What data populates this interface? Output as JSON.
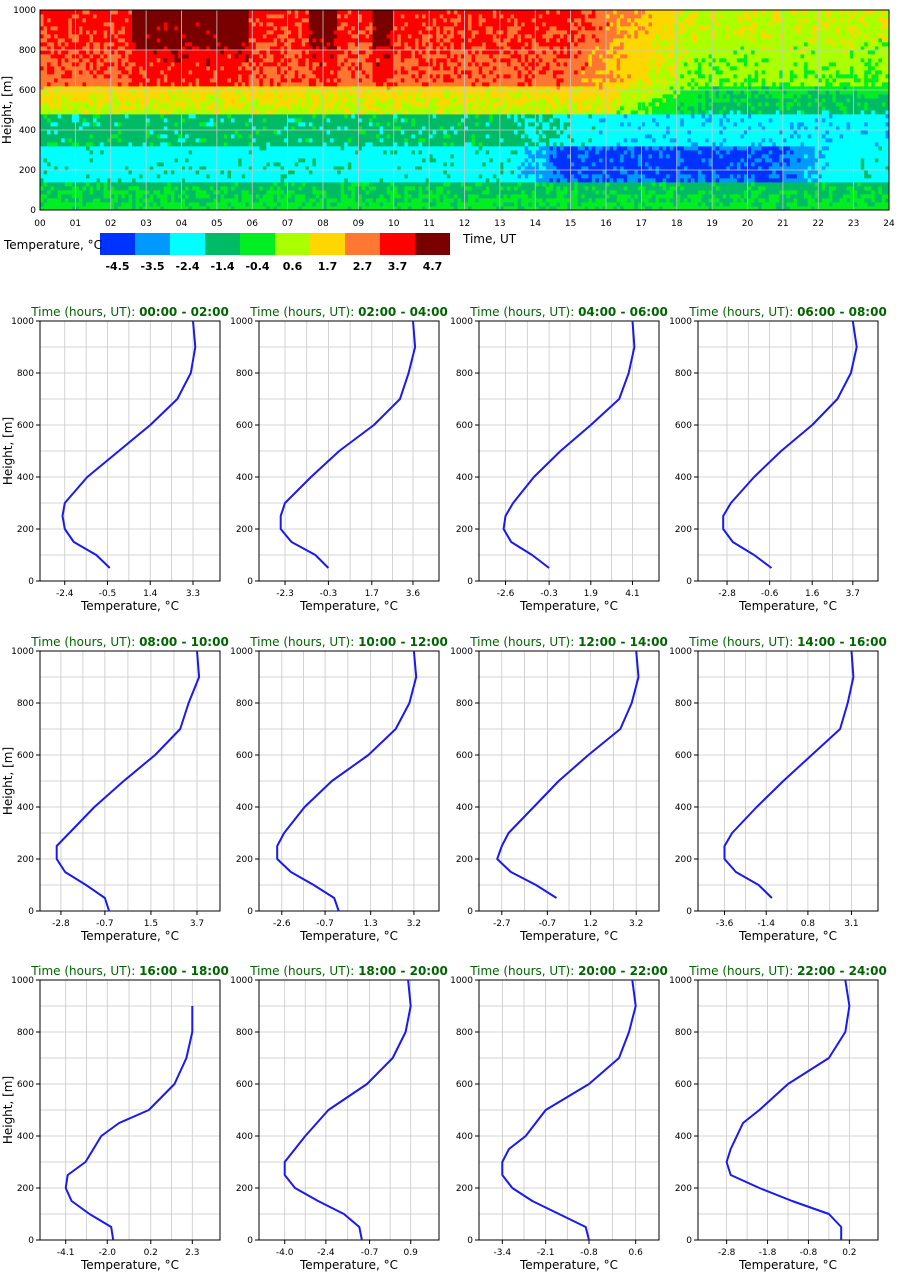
{
  "chart_data": [
    {
      "type": "heatmap",
      "xlabel": "Time, UT",
      "ylabel": "Height, [m]",
      "x_ticks": [
        "00",
        "01",
        "02",
        "03",
        "04",
        "05",
        "06",
        "07",
        "08",
        "09",
        "10",
        "11",
        "12",
        "13",
        "14",
        "15",
        "16",
        "17",
        "18",
        "19",
        "20",
        "21",
        "22",
        "23",
        "24"
      ],
      "y_ticks": [
        0,
        200,
        400,
        600,
        800,
        1000
      ],
      "xlim": [
        0,
        24
      ],
      "ylim": [
        0,
        1000
      ],
      "grid": true,
      "colorbar": {
        "label": "Temperature, °C",
        "levels": [
          "-4.5",
          "-3.5",
          "-2.4",
          "-1.4",
          "-0.4",
          "0.6",
          "1.7",
          "2.7",
          "3.7",
          "4.7"
        ],
        "colors": [
          "#0033ff",
          "#0099ff",
          "#00ffff",
          "#00bb66",
          "#00ee22",
          "#aaff00",
          "#ffd700",
          "#ff7733",
          "#ff0000",
          "#7a0000"
        ]
      }
    },
    {
      "type": "line",
      "title_prefix": "Time (hours, UT): ",
      "title_range": "00:00 - 02:00",
      "xlabel": "Temperature, °C",
      "ylabel": "Height, [m]",
      "x_ticks": [
        -2.4,
        -0.5,
        1.4,
        3.3
      ],
      "xlim": [
        -3.5,
        4.5
      ],
      "ylim": [
        0,
        1000
      ],
      "y_ticks": [
        0,
        200,
        400,
        600,
        800,
        1000
      ],
      "series": [
        {
          "temp": [
            -0.4,
            -1.0,
            -2.0,
            -2.4,
            -2.5,
            -2.4,
            -1.4,
            0.0,
            1.4,
            2.6,
            3.2,
            3.4,
            3.3
          ],
          "height": [
            50,
            100,
            150,
            200,
            250,
            300,
            400,
            500,
            600,
            700,
            800,
            900,
            1000
          ]
        }
      ]
    },
    {
      "type": "line",
      "title_prefix": "Time (hours, UT): ",
      "title_range": "02:00 - 04:00",
      "xlabel": "Temperature, °C",
      "ylabel": "Height, [m]",
      "x_ticks": [
        -2.3,
        -0.3,
        1.7,
        3.6
      ],
      "xlim": [
        -3.5,
        4.8
      ],
      "ylim": [
        0,
        1000
      ],
      "y_ticks": [
        0,
        200,
        400,
        600,
        800,
        1000
      ],
      "series": [
        {
          "temp": [
            -0.3,
            -0.9,
            -2.0,
            -2.5,
            -2.5,
            -2.3,
            -1.1,
            0.2,
            1.8,
            3.0,
            3.4,
            3.7,
            3.6
          ],
          "height": [
            50,
            100,
            150,
            200,
            250,
            300,
            400,
            500,
            600,
            700,
            800,
            900,
            1000
          ]
        }
      ]
    },
    {
      "type": "line",
      "title_prefix": "Time (hours, UT): ",
      "title_range": "04:00 - 06:00",
      "xlabel": "Temperature, °C",
      "ylabel": "Height, [m]",
      "x_ticks": [
        -2.6,
        -0.3,
        1.9,
        4.1
      ],
      "xlim": [
        -4.0,
        5.5
      ],
      "ylim": [
        0,
        1000
      ],
      "y_ticks": [
        0,
        200,
        400,
        600,
        800,
        1000
      ],
      "series": [
        {
          "temp": [
            -0.3,
            -1.2,
            -2.3,
            -2.7,
            -2.6,
            -2.2,
            -1.1,
            0.3,
            1.9,
            3.4,
            3.9,
            4.2,
            4.1
          ],
          "height": [
            50,
            100,
            150,
            200,
            250,
            300,
            400,
            500,
            600,
            700,
            800,
            900,
            1000
          ]
        }
      ]
    },
    {
      "type": "line",
      "title_prefix": "Time (hours, UT): ",
      "title_range": "06:00 - 08:00",
      "xlabel": "Temperature, °C",
      "ylabel": "Height, [m]",
      "x_ticks": [
        -2.8,
        -0.6,
        1.6,
        3.7
      ],
      "xlim": [
        -4.3,
        5.0
      ],
      "ylim": [
        0,
        1000
      ],
      "y_ticks": [
        0,
        200,
        400,
        600,
        800,
        1000
      ],
      "series": [
        {
          "temp": [
            -0.5,
            -1.4,
            -2.5,
            -3.0,
            -3.0,
            -2.6,
            -1.4,
            0.0,
            1.6,
            2.9,
            3.6,
            3.9,
            3.7
          ],
          "height": [
            50,
            100,
            150,
            200,
            250,
            300,
            400,
            500,
            600,
            700,
            800,
            900,
            1000
          ]
        }
      ]
    },
    {
      "type": "line",
      "title_prefix": "Time (hours, UT): ",
      "title_range": "08:00 - 10:00",
      "xlabel": "Temperature, °C",
      "ylabel": "Height, [m]",
      "x_ticks": [
        -2.8,
        -0.7,
        1.5,
        3.7
      ],
      "xlim": [
        -3.8,
        4.8
      ],
      "ylim": [
        0,
        1000
      ],
      "y_ticks": [
        0,
        200,
        400,
        600,
        800,
        1000
      ],
      "series": [
        {
          "temp": [
            -0.5,
            -0.7,
            -1.6,
            -2.6,
            -3.0,
            -3.0,
            -2.4,
            -1.2,
            0.2,
            1.7,
            2.9,
            3.3,
            3.8,
            3.7
          ],
          "height": [
            0,
            50,
            100,
            150,
            200,
            250,
            300,
            400,
            500,
            600,
            700,
            800,
            900,
            1000
          ]
        }
      ]
    },
    {
      "type": "line",
      "title_prefix": "Time (hours, UT): ",
      "title_range": "10:00 - 12:00",
      "xlabel": "Temperature, °C",
      "ylabel": "Height, [m]",
      "x_ticks": [
        -2.6,
        -0.7,
        1.3,
        3.2
      ],
      "xlim": [
        -3.6,
        4.3
      ],
      "ylim": [
        0,
        1000
      ],
      "y_ticks": [
        0,
        200,
        400,
        600,
        800,
        1000
      ],
      "series": [
        {
          "temp": [
            -0.1,
            -0.3,
            -1.2,
            -2.2,
            -2.8,
            -2.8,
            -2.5,
            -1.6,
            -0.4,
            1.2,
            2.4,
            3.0,
            3.3,
            3.2
          ],
          "height": [
            0,
            50,
            100,
            150,
            200,
            250,
            300,
            400,
            500,
            600,
            700,
            800,
            900,
            1000
          ]
        }
      ]
    },
    {
      "type": "line",
      "title_prefix": "Time (hours, UT): ",
      "title_range": "12:00 - 14:00",
      "xlabel": "Temperature, °C",
      "ylabel": "Height, [m]",
      "x_ticks": [
        -2.7,
        -0.7,
        1.2,
        3.2
      ],
      "xlim": [
        -3.7,
        4.2
      ],
      "ylim": [
        0,
        1000
      ],
      "y_ticks": [
        0,
        200,
        400,
        600,
        800,
        1000
      ],
      "series": [
        {
          "temp": [
            -0.3,
            -1.2,
            -2.3,
            -2.9,
            -2.7,
            -2.4,
            -1.3,
            -0.2,
            1.1,
            2.5,
            3.0,
            3.3,
            3.2
          ],
          "height": [
            50,
            100,
            150,
            200,
            250,
            300,
            400,
            500,
            600,
            700,
            800,
            900,
            1000
          ]
        }
      ]
    },
    {
      "type": "line",
      "title_prefix": "Time (hours, UT): ",
      "title_range": "14:00 - 16:00",
      "xlabel": "Temperature, °C",
      "ylabel": "Height, [m]",
      "x_ticks": [
        -3.6,
        -1.4,
        0.8,
        3.1
      ],
      "xlim": [
        -5.0,
        4.5
      ],
      "ylim": [
        0,
        1000
      ],
      "y_ticks": [
        0,
        200,
        400,
        600,
        800,
        1000
      ],
      "series": [
        {
          "temp": [
            -1.1,
            -1.8,
            -3.0,
            -3.6,
            -3.6,
            -3.2,
            -1.9,
            -0.5,
            1.0,
            2.5,
            2.9,
            3.2,
            3.1
          ],
          "height": [
            50,
            100,
            150,
            200,
            250,
            300,
            400,
            500,
            600,
            700,
            800,
            900,
            1000
          ]
        }
      ]
    },
    {
      "type": "line",
      "title_prefix": "Time (hours, UT): ",
      "title_range": "16:00 - 18:00",
      "xlabel": "Temperature, °C",
      "ylabel": "Height, [m]",
      "x_ticks": [
        -4.1,
        -2.0,
        0.2,
        2.3
      ],
      "xlim": [
        -5.4,
        3.7
      ],
      "ylim": [
        0,
        1000
      ],
      "y_ticks": [
        0,
        200,
        400,
        600,
        800,
        1000
      ],
      "series": [
        {
          "temp": [
            -1.7,
            -1.8,
            -2.9,
            -3.8,
            -4.1,
            -4.0,
            -3.1,
            -2.3,
            -1.4,
            0.1,
            1.4,
            2.0,
            2.3,
            2.3
          ],
          "height": [
            0,
            50,
            100,
            150,
            200,
            250,
            300,
            400,
            450,
            500,
            600,
            700,
            800,
            900
          ]
        }
      ]
    },
    {
      "type": "line",
      "title_prefix": "Time (hours, UT): ",
      "title_range": "18:00 - 20:00",
      "xlabel": "Temperature, °C",
      "ylabel": "Height, [m]",
      "x_ticks": [
        -4.0,
        -2.4,
        -0.7,
        0.9
      ],
      "xlim": [
        -5.0,
        2.0
      ],
      "ylim": [
        0,
        1000
      ],
      "y_ticks": [
        0,
        200,
        400,
        600,
        800,
        1000
      ],
      "series": [
        {
          "temp": [
            -1.0,
            -1.1,
            -1.7,
            -2.7,
            -3.6,
            -4.0,
            -4.0,
            -3.2,
            -2.3,
            -0.8,
            0.2,
            0.7,
            0.9,
            0.8
          ],
          "height": [
            0,
            50,
            100,
            150,
            200,
            250,
            300,
            400,
            500,
            600,
            700,
            800,
            900,
            1000
          ]
        }
      ]
    },
    {
      "type": "line",
      "title_prefix": "Time (hours, UT): ",
      "title_range": "20:00 - 22:00",
      "xlabel": "Temperature, °C",
      "ylabel": "Height, [m]",
      "x_ticks": [
        -3.4,
        -2.1,
        -0.8,
        0.6
      ],
      "xlim": [
        -4.1,
        1.3
      ],
      "ylim": [
        0,
        1000
      ],
      "y_ticks": [
        0,
        200,
        400,
        600,
        800,
        1000
      ],
      "series": [
        {
          "temp": [
            -0.8,
            -0.9,
            -1.7,
            -2.5,
            -3.1,
            -3.4,
            -3.4,
            -3.2,
            -2.7,
            -2.1,
            -0.8,
            0.1,
            0.4,
            0.6,
            0.5
          ],
          "height": [
            0,
            50,
            100,
            150,
            200,
            250,
            300,
            350,
            400,
            500,
            600,
            700,
            800,
            900,
            1000
          ]
        }
      ]
    },
    {
      "type": "line",
      "title_prefix": "Time (hours, UT): ",
      "title_range": "22:00 - 24:00",
      "xlabel": "Temperature, °C",
      "ylabel": "Height, [m]",
      "x_ticks": [
        -2.8,
        -1.8,
        -0.8,
        0.2
      ],
      "xlim": [
        -3.5,
        0.9
      ],
      "ylim": [
        0,
        1000
      ],
      "y_ticks": [
        0,
        200,
        400,
        600,
        800,
        1000
      ],
      "series": [
        {
          "temp": [
            0.0,
            0.0,
            -0.3,
            -1.2,
            -2.0,
            -2.7,
            -2.8,
            -2.7,
            -2.4,
            -2.0,
            -1.3,
            -0.3,
            0.1,
            0.2,
            0.1
          ],
          "height": [
            0,
            50,
            100,
            150,
            200,
            250,
            300,
            350,
            450,
            500,
            600,
            700,
            800,
            900,
            1000
          ]
        }
      ]
    }
  ]
}
